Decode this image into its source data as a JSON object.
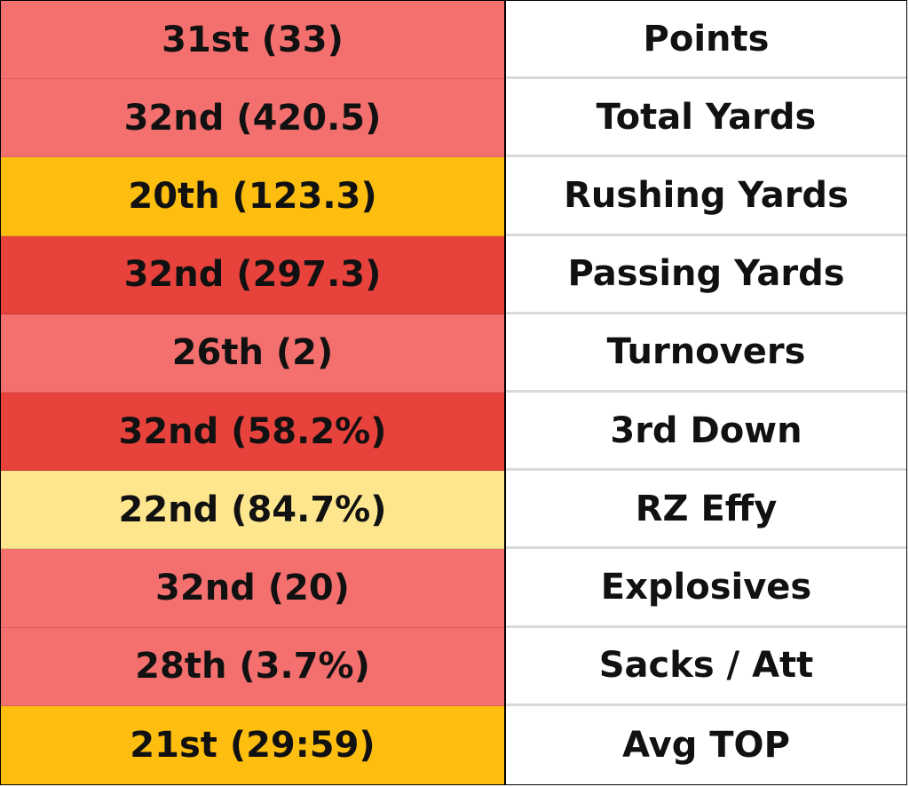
{
  "rows": [
    {
      "rank": "31st (33)",
      "stat": "Points",
      "color": "#f4706f"
    },
    {
      "rank": "32nd (420.5)",
      "stat": "Total Yards",
      "color": "#f4706f"
    },
    {
      "rank": "20th (123.3)",
      "stat": "Rushing Yards",
      "color": "#fdbe10"
    },
    {
      "rank": "32nd (297.3)",
      "stat": "Passing Yards",
      "color": "#e8423c"
    },
    {
      "rank": "26th (2)",
      "stat": "Turnovers",
      "color": "#f4706f"
    },
    {
      "rank": "32nd (58.2%)",
      "stat": "3rd Down",
      "color": "#e8423c"
    },
    {
      "rank": "22nd (84.7%)",
      "stat": "RZ Effy",
      "color": "#fde68e"
    },
    {
      "rank": "32nd (20)",
      "stat": "Explosives",
      "color": "#f4706f"
    },
    {
      "rank": "28th (3.7%)",
      "stat": "Sacks / Att",
      "color": "#f4706f"
    },
    {
      "rank": "21st (29:59)",
      "stat": "Avg TOP",
      "color": "#fdbe10"
    }
  ]
}
